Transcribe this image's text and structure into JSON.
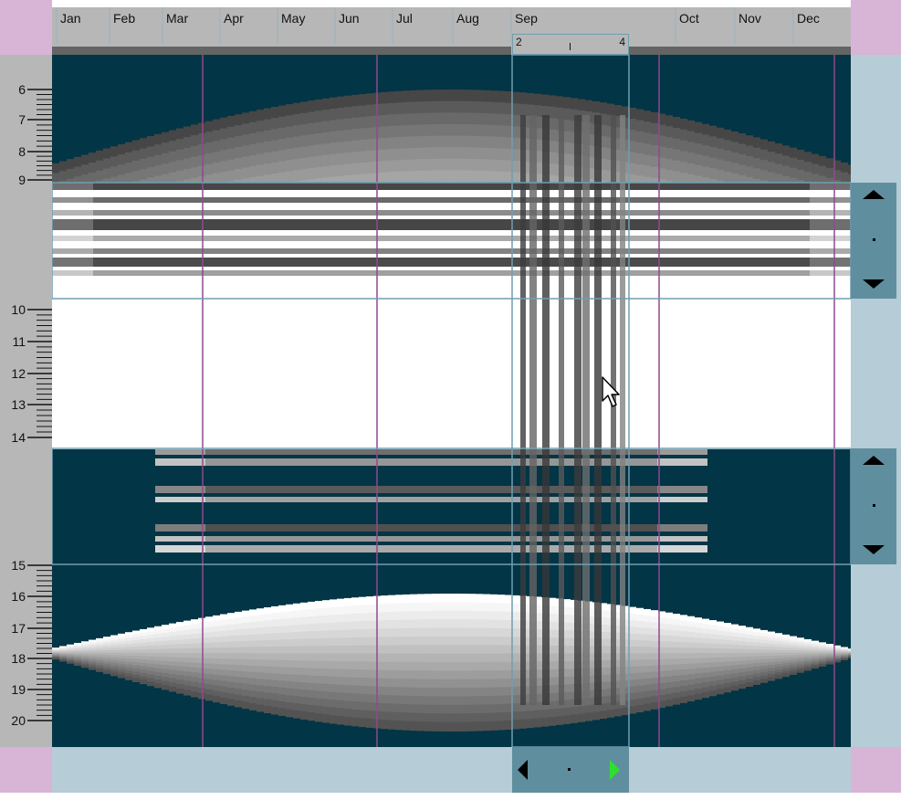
{
  "months": [
    "Jan",
    "Feb",
    "Mar",
    "Apr",
    "May",
    "Jun",
    "Jul",
    "Aug",
    "Sep",
    "Oct",
    "Nov",
    "Dec"
  ],
  "hour_labels": [
    "6",
    "7",
    "8",
    "9",
    "10",
    "11",
    "12",
    "13",
    "14",
    "15",
    "16",
    "17",
    "18",
    "19",
    "20"
  ],
  "day_ruler": {
    "start": "2",
    "end": "4"
  },
  "colors": {
    "night": "#023545",
    "header": "#b7b7b7",
    "panel": "#b6ccd6",
    "corner": "#d8b4d6",
    "nav_button": "#5f8f9f",
    "active_arrow": "#2ee02e",
    "divider": "#8e4a8e",
    "selection_border": "#6f9fb0"
  },
  "icons": {
    "upper_zoom_up": "triangle-up-icon",
    "upper_zoom_center": "dot-icon",
    "upper_zoom_down": "triangle-down-icon",
    "lower_zoom_up": "triangle-up-icon",
    "lower_zoom_center": "dot-icon",
    "lower_zoom_down": "triangle-down-icon",
    "date_nav_prev": "triangle-left-icon",
    "date_nav_center": "dot-icon",
    "date_nav_next": "triangle-right-icon",
    "cursor": "mouse-pointer-icon"
  }
}
